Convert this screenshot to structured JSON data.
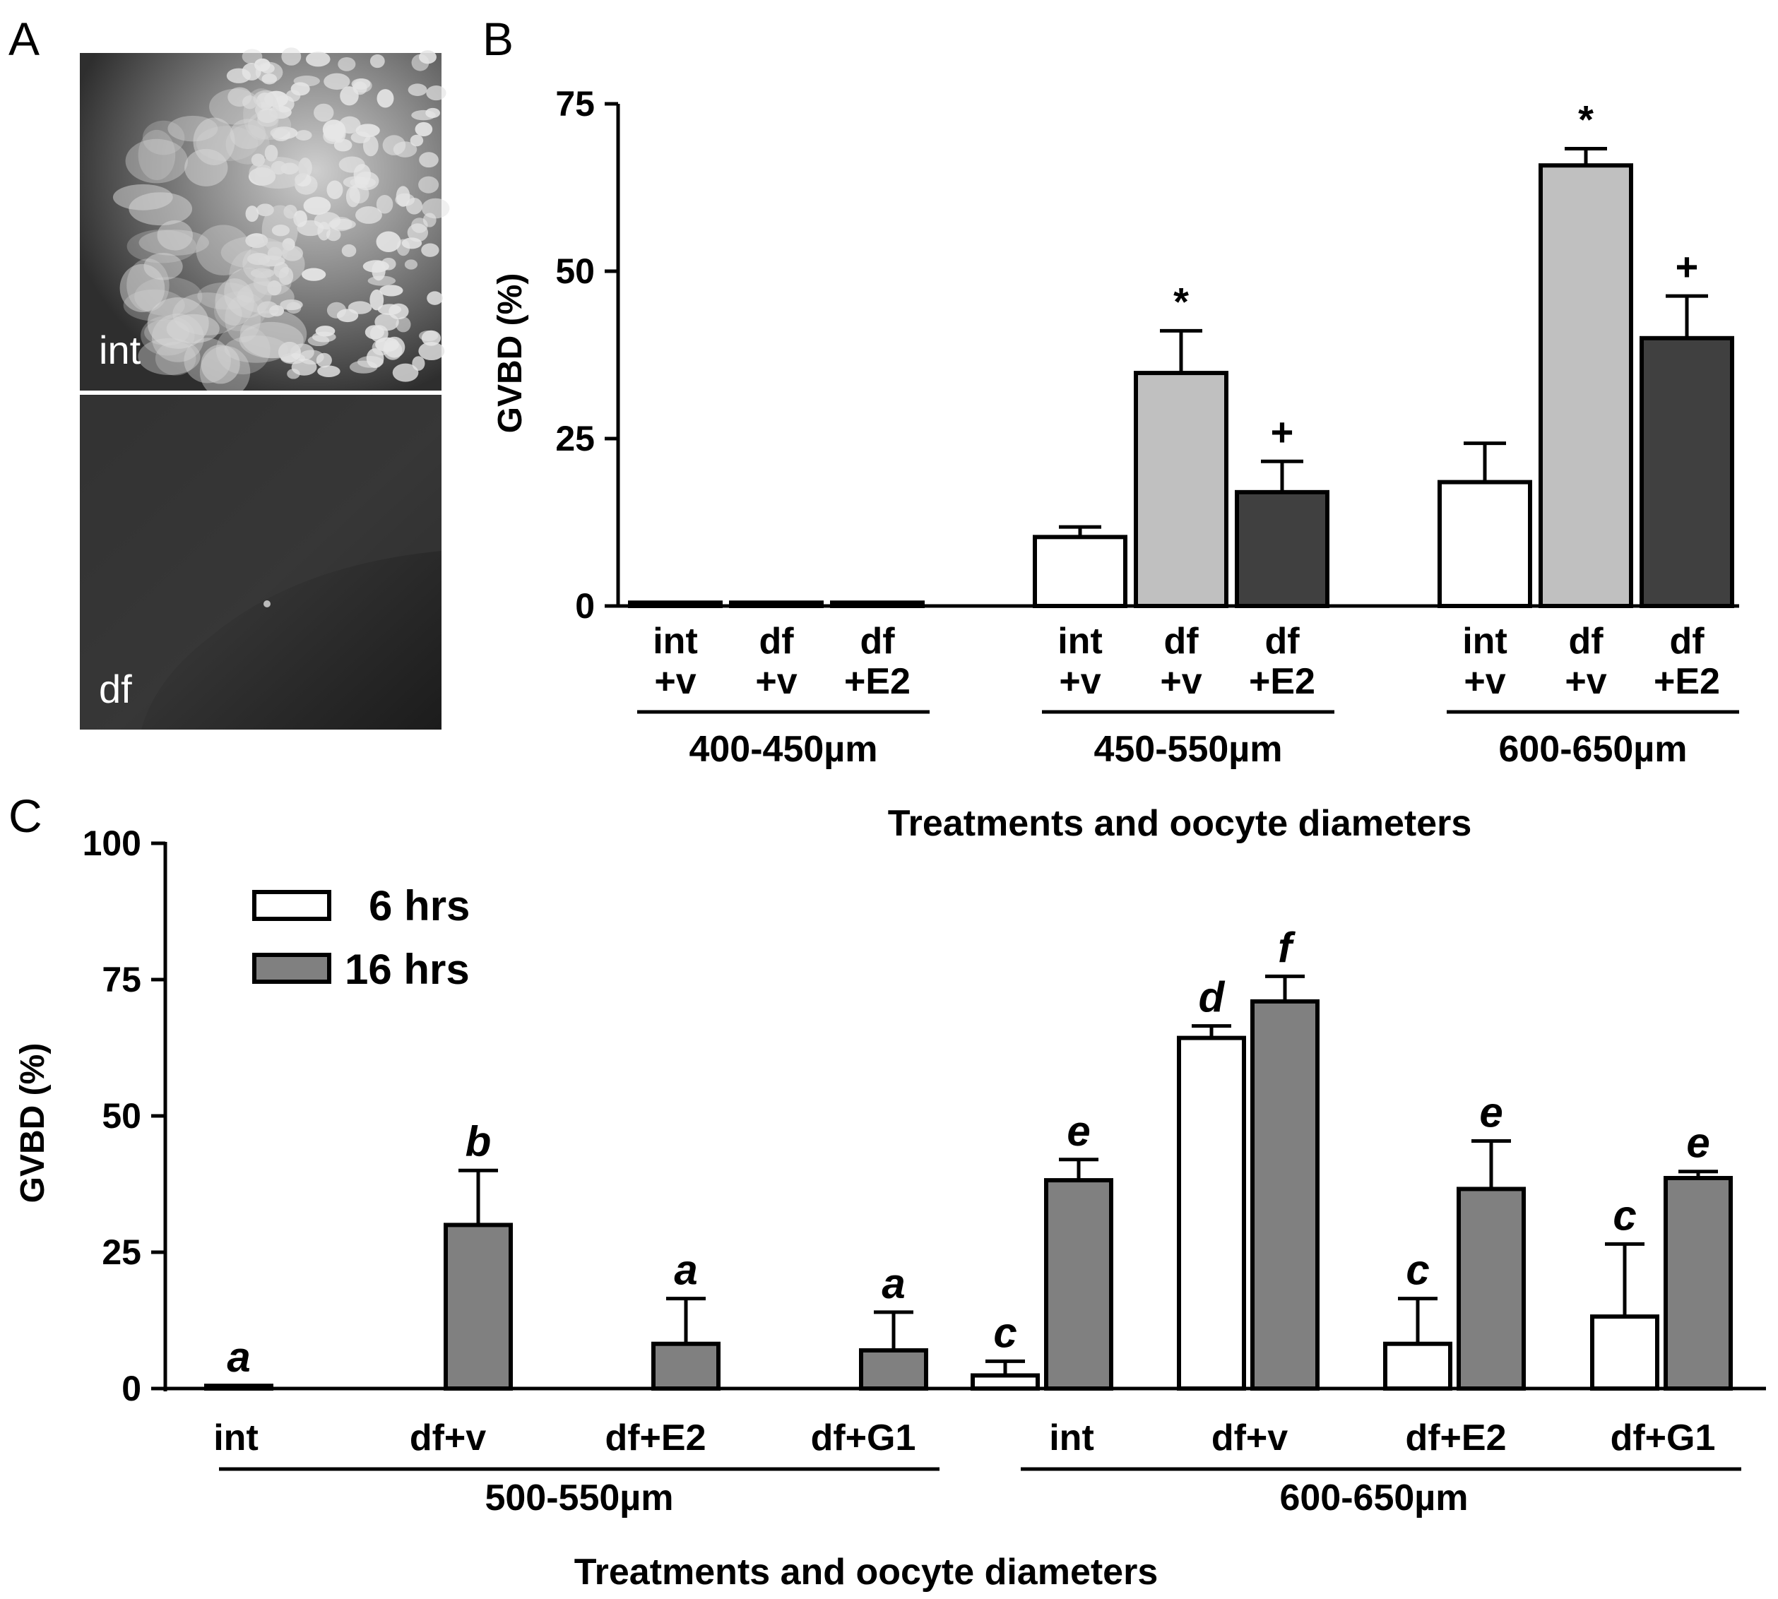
{
  "panels": {
    "a": {
      "letter": "A",
      "images": [
        {
          "label": "int"
        },
        {
          "label": "df"
        }
      ]
    },
    "b": {
      "letter": "B",
      "ylabel": "GVBD (%)",
      "xlabel": "Treatments and oocyte diameters",
      "yticks": [
        "0",
        "25",
        "50",
        "75"
      ]
    },
    "c": {
      "letter": "C",
      "ylabel": "GVBD (%)",
      "xlabel": "Treatments and oocyte diameters",
      "yticks": [
        "0",
        "25",
        "50",
        "75",
        "100"
      ],
      "legend": [
        {
          "label": "6 hrs",
          "color": "#ffffff"
        },
        {
          "label": "16 hrs",
          "color": "#808080"
        }
      ]
    }
  },
  "chart_data": [
    {
      "panel": "B",
      "type": "bar",
      "ylabel": "GVBD (%)",
      "xlabel": "Treatments and oocyte diameters",
      "ylim": [
        0,
        75
      ],
      "groups": [
        {
          "label": "400-450µm",
          "bars": [
            {
              "label": [
                "int",
                "+v"
              ],
              "value": 0.5,
              "error": 0,
              "color": "#ffffff",
              "mark": ""
            },
            {
              "label": [
                "df",
                "+v"
              ],
              "value": 0.5,
              "error": 0,
              "color": "#c0c0c0",
              "mark": ""
            },
            {
              "label": [
                "df",
                "+E2"
              ],
              "value": 0.5,
              "error": 0,
              "color": "#404040",
              "mark": ""
            }
          ]
        },
        {
          "label": "450-550µm",
          "bars": [
            {
              "label": [
                "int",
                "+v"
              ],
              "value": 10.3,
              "error": 1.5,
              "color": "#ffffff",
              "mark": ""
            },
            {
              "label": [
                "df",
                "+v"
              ],
              "value": 34.8,
              "error": 6.3,
              "color": "#c0c0c0",
              "mark": "*"
            },
            {
              "label": [
                "df",
                "+E2"
              ],
              "value": 17,
              "error": 4.6,
              "color": "#404040",
              "mark": "+"
            }
          ]
        },
        {
          "label": "600-650µm",
          "bars": [
            {
              "label": [
                "int",
                "+v"
              ],
              "value": 18.5,
              "error": 5.8,
              "color": "#ffffff",
              "mark": ""
            },
            {
              "label": [
                "df",
                "+v"
              ],
              "value": 65.8,
              "error": 2.5,
              "color": "#c0c0c0",
              "mark": "*"
            },
            {
              "label": [
                "df",
                "+E2"
              ],
              "value": 40,
              "error": 6.3,
              "color": "#404040",
              "mark": "+"
            }
          ]
        }
      ]
    },
    {
      "panel": "C",
      "type": "bar",
      "ylabel": "GVBD (%)",
      "xlabel": "Treatments and oocyte diameters",
      "ylim": [
        0,
        100
      ],
      "series": [
        {
          "name": "6 hrs",
          "color": "#ffffff"
        },
        {
          "name": "16 hrs",
          "color": "#808080"
        }
      ],
      "groups": [
        {
          "label": "500-550µm",
          "categories": [
            {
              "label": "int",
              "bars": [
                {
                  "series": "16 hrs",
                  "value": 0.5,
                  "error": 0,
                  "letter": "a"
                }
              ]
            },
            {
              "label": "df+v",
              "bars": [
                {
                  "series": "16 hrs",
                  "value": 30,
                  "error": 10,
                  "letter": "b"
                }
              ]
            },
            {
              "label": "df+E2",
              "bars": [
                {
                  "series": "16 hrs",
                  "value": 8.2,
                  "error": 8.3,
                  "letter": "a"
                }
              ]
            },
            {
              "label": "df+G1",
              "bars": [
                {
                  "series": "16 hrs",
                  "value": 7,
                  "error": 7,
                  "letter": "a"
                }
              ]
            }
          ]
        },
        {
          "label": "600-650µm",
          "categories": [
            {
              "label": "int",
              "bars": [
                {
                  "series": "6 hrs",
                  "value": 2.4,
                  "error": 2.6,
                  "letter": "c"
                },
                {
                  "series": "16 hrs",
                  "value": 38.2,
                  "error": 3.8,
                  "letter": "e"
                }
              ]
            },
            {
              "label": "df+v",
              "bars": [
                {
                  "series": "6 hrs",
                  "value": 64.3,
                  "error": 2.2,
                  "letter": "d"
                },
                {
                  "series": "16 hrs",
                  "value": 71,
                  "error": 4.6,
                  "letter": "f"
                }
              ]
            },
            {
              "label": "df+E2",
              "bars": [
                {
                  "series": "6 hrs",
                  "value": 8.2,
                  "error": 8.3,
                  "letter": "c"
                },
                {
                  "series": "16 hrs",
                  "value": 36.6,
                  "error": 8.8,
                  "letter": "e"
                }
              ]
            },
            {
              "label": "df+G1",
              "bars": [
                {
                  "series": "6 hrs",
                  "value": 13.2,
                  "error": 13.3,
                  "letter": "c"
                },
                {
                  "series": "16 hrs",
                  "value": 38.6,
                  "error": 1.2,
                  "letter": "e"
                }
              ]
            }
          ]
        }
      ]
    }
  ]
}
